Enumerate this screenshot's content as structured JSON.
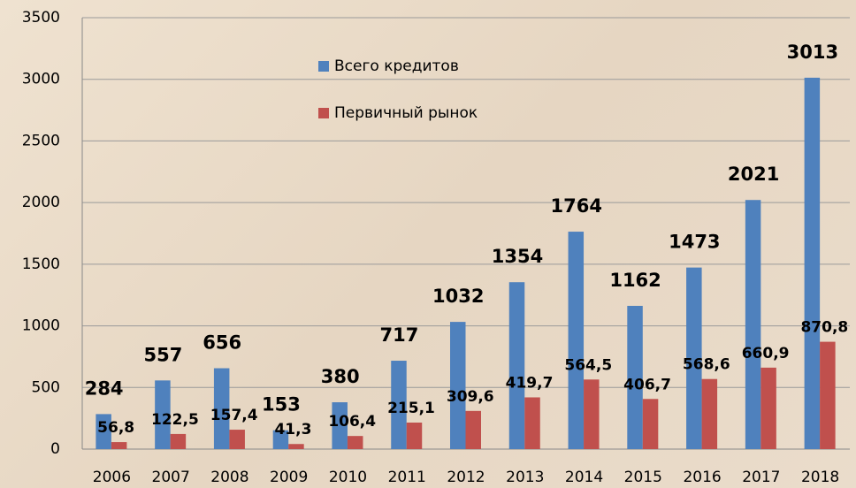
{
  "chart_data": {
    "type": "bar",
    "categories": [
      "2006",
      "2007",
      "2008",
      "2009",
      "2010",
      "2011",
      "2012",
      "2013",
      "2014",
      "2015",
      "2016",
      "2017",
      "2018"
    ],
    "series": [
      {
        "name": "Всего кредитов",
        "color": "#4f81bd",
        "values": [
          284,
          557,
          656,
          153,
          380,
          717,
          1032,
          1354,
          1764,
          1162,
          1473,
          2021,
          3013
        ]
      },
      {
        "name": "Первичный рынок",
        "color": "#c0504d",
        "values": [
          56.8,
          122.5,
          157.4,
          41.3,
          106.4,
          215.1,
          309.6,
          419.7,
          564.5,
          406.7,
          568.6,
          660.9,
          870.8
        ],
        "value_labels": [
          "56,8",
          "122,5",
          "157,4",
          "41,3",
          "106,4",
          "215,1",
          "309,6",
          "419,7",
          "564,5",
          "406,7",
          "568,6",
          "660,9",
          "870,8"
        ]
      }
    ],
    "ylim": [
      0,
      3500
    ],
    "yticks": [
      0,
      500,
      1000,
      1500,
      2000,
      2500,
      3000,
      3500
    ],
    "grid": true,
    "legend": "top-center"
  }
}
